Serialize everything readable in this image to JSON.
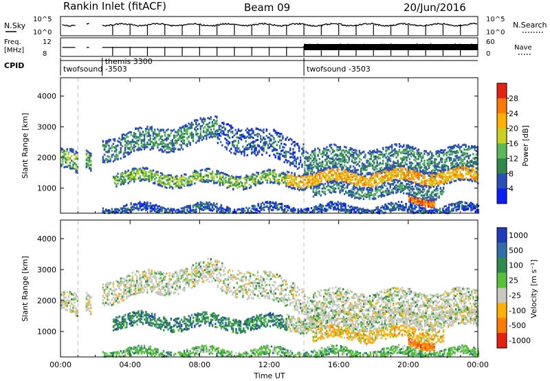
{
  "header": {
    "station": "Rankin Inlet (fitACF)",
    "beam": "Beam 09",
    "date": "20/Jun/2016"
  },
  "strips": {
    "nsky_label": "N.Sky",
    "nsky_ticks": [
      "10^5",
      "10^0"
    ],
    "nsearch_label": "N.Search",
    "nsearch_ticks": [
      "10^5",
      "10^0"
    ],
    "freq_label": "Freq.",
    "freq_unit": "[MHz]",
    "freq_ticks": [
      "12",
      "8"
    ],
    "nave_label": "Nave",
    "nave_ticks": [
      "60",
      "0"
    ],
    "cpid_label": "CPID"
  },
  "cpid_segments": [
    {
      "name": "twofsound -3503",
      "start_hour": 0.0,
      "end_hour": 2.4
    },
    {
      "name": "themis 3300",
      "start_hour": 2.4,
      "end_hour": 14.0
    },
    {
      "name": "twofsound -3503",
      "start_hour": 14.0,
      "end_hour": 24.0
    }
  ],
  "chart_data": [
    {
      "type": "heatmap",
      "name": "power",
      "xlabel": "Time UT",
      "ylabel": "Slant Range [km]",
      "xlim": [
        0,
        24
      ],
      "ylim": [
        180,
        4600
      ],
      "x_ticks": [
        "00:00",
        "04:00",
        "08:00",
        "12:00",
        "16:00",
        "20:00",
        "00:00"
      ],
      "y_ticks": [
        1000,
        2000,
        3000,
        4000
      ],
      "colorbar_label": "Power [dB]",
      "colorbar_ticks": [
        "4",
        "8",
        "12",
        "16",
        "20",
        "24",
        "28"
      ],
      "colorbar_colors": [
        "#0a1fff",
        "#2b4fb8",
        "#2f8a4a",
        "#5ab75a",
        "#c8d020",
        "#ffb000",
        "#ff7800",
        "#e82010"
      ]
    },
    {
      "type": "heatmap",
      "name": "velocity",
      "xlabel": "Time UT",
      "ylabel": "Slant Range [km]",
      "xlim": [
        0,
        24
      ],
      "ylim": [
        180,
        4600
      ],
      "x_ticks": [
        "00:00",
        "04:00",
        "08:00",
        "12:00",
        "16:00",
        "20:00",
        "00:00"
      ],
      "y_ticks": [
        1000,
        2000,
        3000,
        4000
      ],
      "colorbar_label": "Velocity [m s⁻¹]",
      "colorbar_ticks": [
        "1000",
        "500",
        "100",
        "25",
        "-25",
        "-100",
        "-500",
        "-1000"
      ],
      "colorbar_colors": [
        "#1f3cc0",
        "#2f6ea8",
        "#2d8c4c",
        "#55c23a",
        "#c8c8c0",
        "#ffb000",
        "#ff7a00",
        "#e82010"
      ]
    }
  ]
}
